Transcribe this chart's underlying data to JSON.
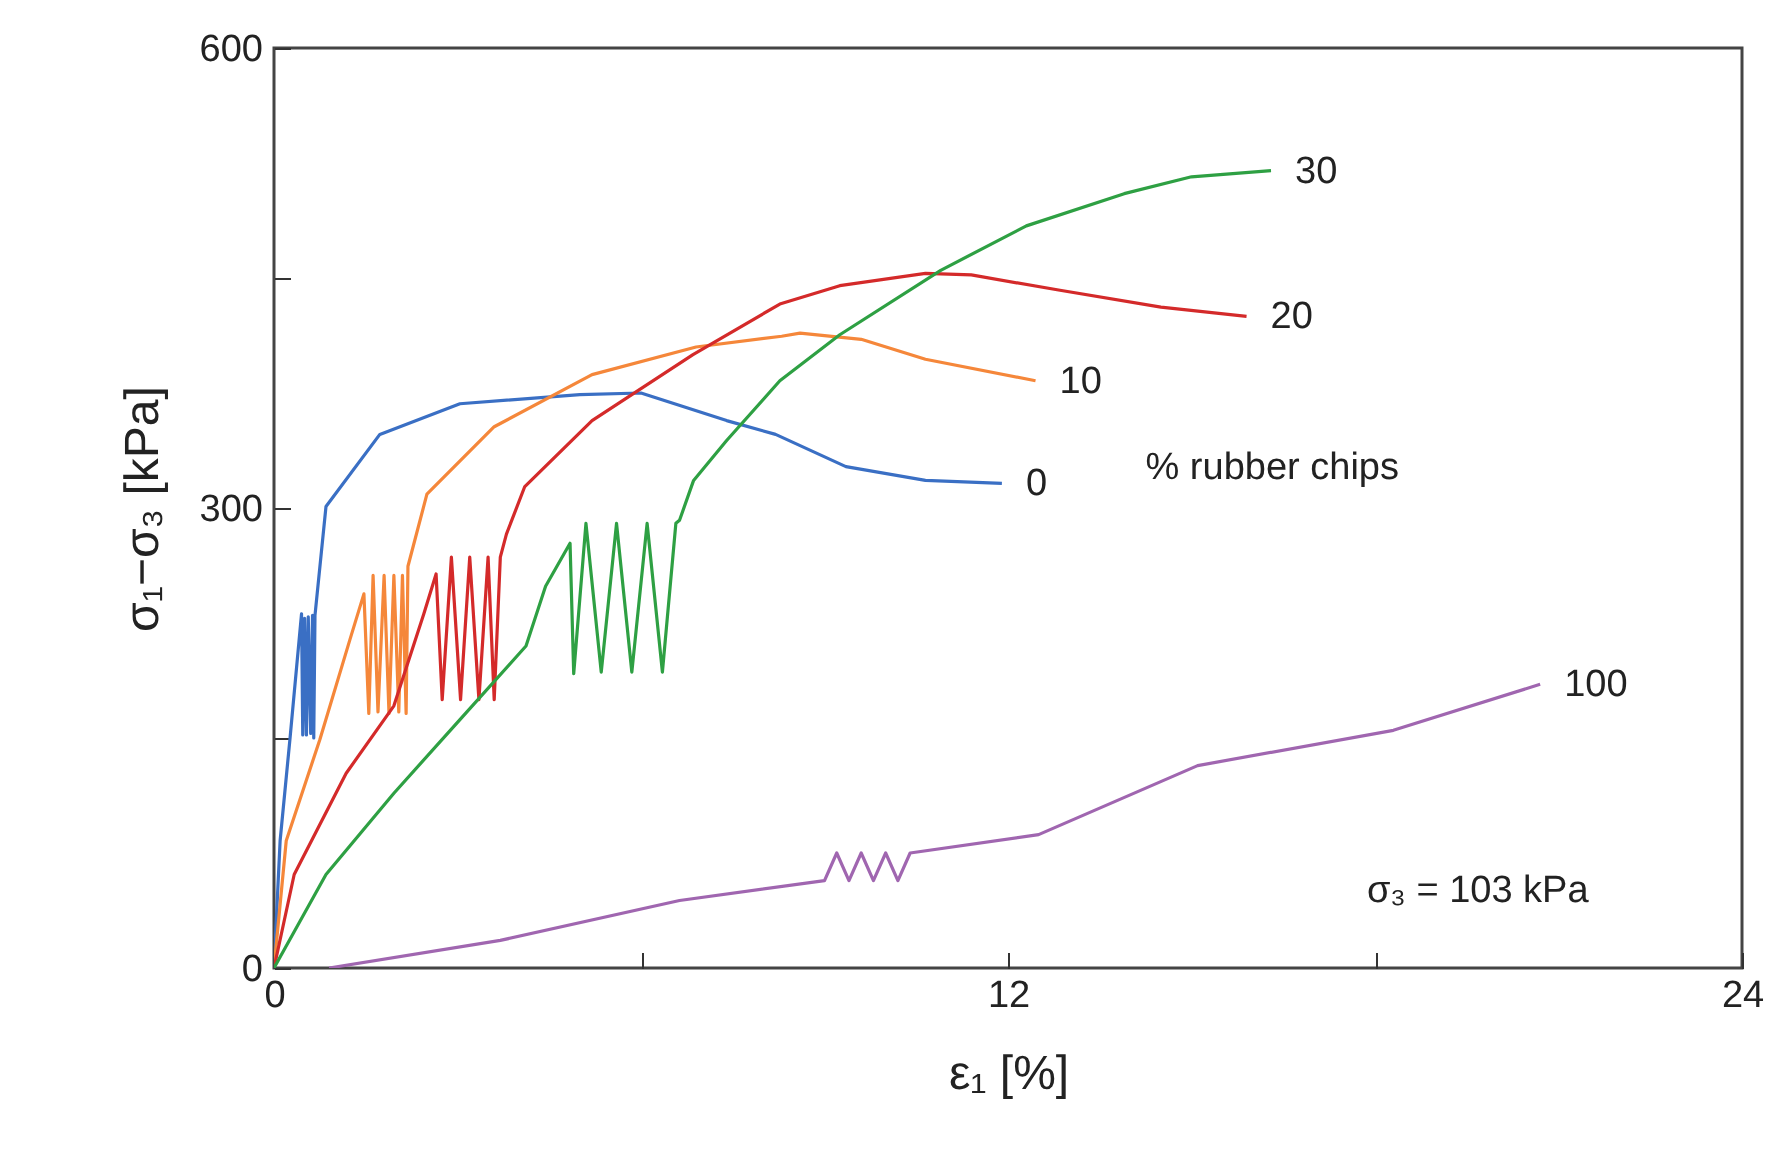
{
  "chart_data": {
    "type": "line",
    "xlabel": "ε₁ [%]",
    "ylabel": "σ₁−σ₃ [kPa]",
    "xlim": [
      0,
      24
    ],
    "xticks": [
      0,
      {
        "value": 6,
        "label": null
      },
      12,
      {
        "value": 18,
        "label": null
      },
      24
    ],
    "ylim": [
      0,
      600
    ],
    "yticks": [
      0,
      {
        "value": 150,
        "label": null
      },
      300,
      {
        "value": 450,
        "label": null
      },
      600
    ],
    "grid": false,
    "annotations": [
      "% rubber chips",
      "σ₃ = 103 kPa"
    ],
    "series": [
      {
        "name": "0",
        "color": "#3a6fc4",
        "x": [
          0,
          0.1,
          0.26,
          0.45,
          0.47,
          0.5,
          0.53,
          0.56,
          0.6,
          0.63,
          0.65,
          0.67,
          0.85,
          1.73,
          3.04,
          5.0,
          6.0,
          7.4,
          8.2,
          9.35,
          10.65,
          11.9
        ],
        "values": [
          0,
          83,
          149,
          231,
          152,
          228,
          152,
          229,
          153,
          230,
          150,
          230,
          301,
          348,
          368,
          374,
          375,
          357,
          348,
          327,
          318,
          316
        ]
      },
      {
        "name": "10",
        "color": "#f5873a",
        "x": [
          0,
          0.2,
          0.75,
          1.24,
          1.47,
          1.55,
          1.62,
          1.7,
          1.8,
          1.88,
          1.96,
          2.04,
          2.1,
          2.16,
          2.19,
          2.5,
          3.6,
          5.2,
          6.9,
          8.3,
          8.6,
          9.6,
          10.65,
          12.45
        ],
        "values": [
          0,
          83,
          149,
          214,
          244,
          166,
          256,
          167,
          256,
          166,
          256,
          167,
          256,
          166,
          262,
          309,
          353,
          387,
          405,
          412,
          414,
          410,
          397,
          383
        ]
      },
      {
        "name": "20",
        "color": "#d42a2a",
        "x": [
          0,
          0.33,
          1.18,
          1.96,
          2.45,
          2.65,
          2.75,
          2.9,
          3.05,
          3.2,
          3.35,
          3.5,
          3.6,
          3.7,
          3.8,
          4.1,
          5.2,
          6.85,
          8.27,
          9.25,
          10.65,
          11.4,
          12.85,
          14.5,
          15.9
        ],
        "values": [
          0,
          61,
          127,
          171,
          231,
          257,
          175,
          268,
          175,
          268,
          175,
          268,
          175,
          268,
          283,
          314,
          357,
          400,
          433,
          445,
          453,
          452,
          442,
          431,
          425
        ]
      },
      {
        "name": "30",
        "color": "#2ea043",
        "x": [
          0,
          0.85,
          1.96,
          3.04,
          4.12,
          4.44,
          4.84,
          4.9,
          5.1,
          5.35,
          5.6,
          5.85,
          6.1,
          6.35,
          6.57,
          6.63,
          6.86,
          7.4,
          8.27,
          9.25,
          10.9,
          12.3,
          13.9,
          15.0,
          16.3
        ],
        "values": [
          0,
          61,
          114,
          162,
          210,
          249,
          277,
          192,
          290,
          193,
          290,
          193,
          290,
          193,
          290,
          292,
          318,
          344,
          383,
          413,
          455,
          484,
          505,
          516,
          520
        ]
      },
      {
        "name": "100",
        "color": "#a066b0",
        "x": [
          0.9,
          3.7,
          6.63,
          9.0,
          9.2,
          9.4,
          9.6,
          9.8,
          10.0,
          10.2,
          10.4,
          12.5,
          15.1,
          18.3,
          20.7
        ],
        "values": [
          0,
          18,
          44,
          57,
          75,
          57,
          75,
          57,
          75,
          57,
          75,
          87,
          132,
          155,
          185
        ]
      }
    ]
  }
}
